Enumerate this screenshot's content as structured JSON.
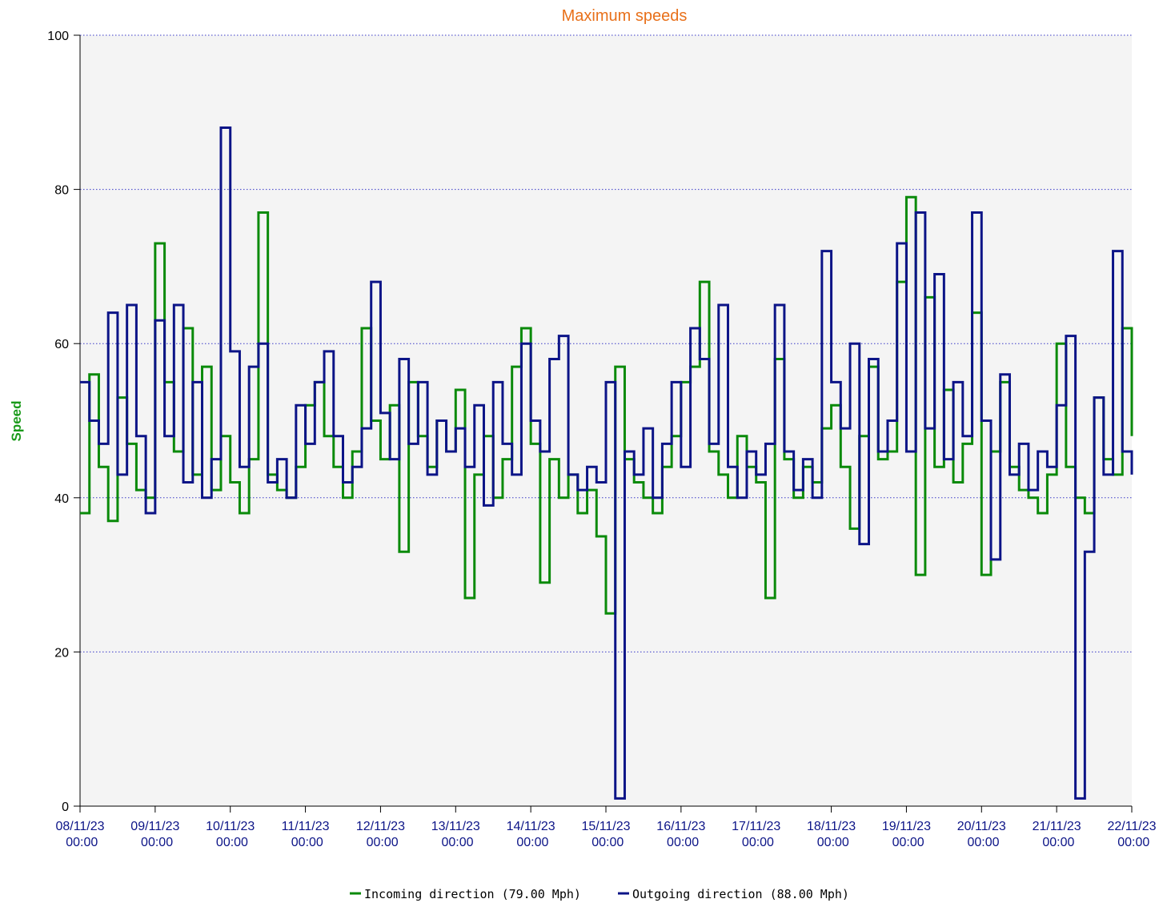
{
  "chart_data": {
    "type": "step-line",
    "title": "Maximum speeds",
    "y_label": "Speed",
    "x": [
      "08/11/23 00:00",
      "08/11/23 03:00",
      "08/11/23 06:00",
      "08/11/23 09:00",
      "08/11/23 12:00",
      "08/11/23 15:00",
      "08/11/23 18:00",
      "08/11/23 21:00",
      "09/11/23 00:00",
      "09/11/23 03:00",
      "09/11/23 06:00",
      "09/11/23 09:00",
      "09/11/23 12:00",
      "09/11/23 15:00",
      "09/11/23 18:00",
      "09/11/23 21:00",
      "10/11/23 00:00",
      "10/11/23 03:00",
      "10/11/23 06:00",
      "10/11/23 09:00",
      "10/11/23 12:00",
      "10/11/23 15:00",
      "10/11/23 18:00",
      "10/11/23 21:00",
      "11/11/23 00:00",
      "11/11/23 03:00",
      "11/11/23 06:00",
      "11/11/23 09:00",
      "11/11/23 12:00",
      "11/11/23 15:00",
      "11/11/23 18:00",
      "11/11/23 21:00",
      "12/11/23 00:00",
      "12/11/23 03:00",
      "12/11/23 06:00",
      "12/11/23 09:00",
      "12/11/23 12:00",
      "12/11/23 15:00",
      "12/11/23 18:00",
      "12/11/23 21:00",
      "13/11/23 00:00",
      "13/11/23 03:00",
      "13/11/23 06:00",
      "13/11/23 09:00",
      "13/11/23 12:00",
      "13/11/23 15:00",
      "13/11/23 18:00",
      "13/11/23 21:00",
      "14/11/23 00:00",
      "14/11/23 03:00",
      "14/11/23 06:00",
      "14/11/23 09:00",
      "14/11/23 12:00",
      "14/11/23 15:00",
      "14/11/23 18:00",
      "14/11/23 21:00",
      "15/11/23 00:00",
      "15/11/23 03:00",
      "15/11/23 06:00",
      "15/11/23 09:00",
      "15/11/23 12:00",
      "15/11/23 15:00",
      "15/11/23 18:00",
      "15/11/23 21:00",
      "16/11/23 00:00",
      "16/11/23 03:00",
      "16/11/23 06:00",
      "16/11/23 09:00",
      "16/11/23 12:00",
      "16/11/23 15:00",
      "16/11/23 18:00",
      "16/11/23 21:00",
      "17/11/23 00:00",
      "17/11/23 03:00",
      "17/11/23 06:00",
      "17/11/23 09:00",
      "17/11/23 12:00",
      "17/11/23 15:00",
      "17/11/23 18:00",
      "17/11/23 21:00",
      "18/11/23 00:00",
      "18/11/23 03:00",
      "18/11/23 06:00",
      "18/11/23 09:00",
      "18/11/23 12:00",
      "18/11/23 15:00",
      "18/11/23 18:00",
      "18/11/23 21:00",
      "19/11/23 00:00",
      "19/11/23 03:00",
      "19/11/23 06:00",
      "19/11/23 09:00",
      "19/11/23 12:00",
      "19/11/23 15:00",
      "19/11/23 18:00",
      "19/11/23 21:00",
      "20/11/23 00:00",
      "20/11/23 03:00",
      "20/11/23 06:00",
      "20/11/23 09:00",
      "20/11/23 12:00",
      "20/11/23 15:00",
      "20/11/23 18:00",
      "20/11/23 21:00",
      "21/11/23 00:00",
      "21/11/23 03:00",
      "21/11/23 06:00",
      "21/11/23 09:00",
      "21/11/23 12:00",
      "21/11/23 15:00",
      "21/11/23 18:00",
      "21/11/23 21:00",
      "22/11/23 00:00"
    ],
    "series": [
      {
        "name": "Incoming direction (79.00 Mph)",
        "color": "#0a8a0a",
        "values": [
          38,
          56,
          44,
          37,
          53,
          47,
          41,
          40,
          73,
          55,
          46,
          62,
          43,
          57,
          41,
          48,
          42,
          38,
          45,
          77,
          43,
          41,
          40,
          44,
          52,
          55,
          48,
          44,
          40,
          46,
          62,
          50,
          45,
          52,
          33,
          55,
          48,
          44,
          50,
          46,
          54,
          27,
          43,
          48,
          40,
          45,
          57,
          62,
          47,
          29,
          45,
          40,
          43,
          38,
          41,
          35,
          25,
          57,
          45,
          42,
          40,
          38,
          44,
          48,
          55,
          57,
          68,
          46,
          43,
          40,
          48,
          44,
          42,
          27,
          58,
          45,
          40,
          44,
          42,
          49,
          52,
          44,
          36,
          48,
          57,
          45,
          46,
          68,
          79,
          30,
          66,
          44,
          54,
          42,
          47,
          64,
          30,
          46,
          55,
          44,
          41,
          40,
          38,
          43,
          60,
          44,
          40,
          38,
          53,
          45,
          43,
          62,
          48
        ]
      },
      {
        "name": "Outgoing direction (88.00 Mph)",
        "color": "#0c1487",
        "values": [
          55,
          50,
          47,
          64,
          43,
          65,
          48,
          38,
          63,
          48,
          65,
          42,
          55,
          40,
          45,
          88,
          59,
          44,
          57,
          60,
          42,
          45,
          40,
          52,
          47,
          55,
          59,
          48,
          42,
          44,
          49,
          68,
          51,
          45,
          58,
          47,
          55,
          43,
          50,
          46,
          49,
          44,
          52,
          39,
          55,
          47,
          43,
          60,
          50,
          46,
          58,
          61,
          43,
          41,
          44,
          42,
          55,
          1,
          46,
          43,
          49,
          40,
          47,
          55,
          44,
          62,
          58,
          47,
          65,
          44,
          40,
          46,
          43,
          47,
          65,
          46,
          41,
          45,
          40,
          72,
          55,
          49,
          60,
          34,
          58,
          46,
          50,
          73,
          46,
          77,
          49,
          69,
          45,
          55,
          48,
          77,
          50,
          32,
          56,
          43,
          47,
          41,
          46,
          44,
          52,
          61,
          1,
          33,
          53,
          43,
          72,
          46,
          43
        ]
      }
    ],
    "xlim": [
      "08/11/23 00:00",
      "22/11/23 00:00"
    ],
    "xticks": [
      "08/11/23 00:00",
      "09/11/23 00:00",
      "10/11/23 00:00",
      "11/11/23 00:00",
      "12/11/23 00:00",
      "13/11/23 00:00",
      "14/11/23 00:00",
      "15/11/23 00:00",
      "16/11/23 00:00",
      "17/11/23 00:00",
      "18/11/23 00:00",
      "19/11/23 00:00",
      "20/11/23 00:00",
      "21/11/23 00:00",
      "22/11/23 00:00"
    ],
    "ylim": [
      0,
      100
    ],
    "yticks": [
      0,
      20,
      40,
      60,
      80,
      100
    ],
    "grid": true
  }
}
